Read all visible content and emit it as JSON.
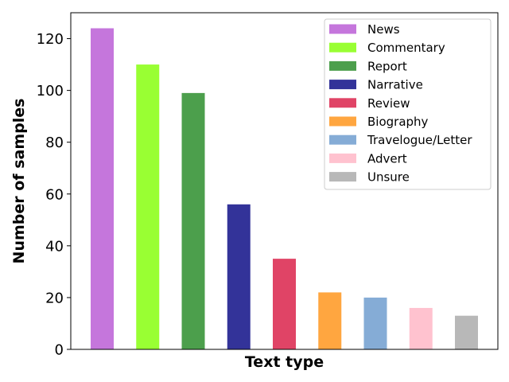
{
  "chart_data": {
    "type": "bar",
    "xlabel": "Text type",
    "ylabel": "Number of samples",
    "ylim": [
      0,
      130
    ],
    "yticks": [
      0,
      20,
      40,
      60,
      80,
      100,
      120
    ],
    "legend_position": "top-right",
    "series": [
      {
        "name": "News",
        "value": 124,
        "color": "#c576dc"
      },
      {
        "name": "Commentary",
        "value": 110,
        "color": "#99ff33"
      },
      {
        "name": "Report",
        "value": 99,
        "color": "#4c9f4c"
      },
      {
        "name": "Narrative",
        "value": 56,
        "color": "#333399"
      },
      {
        "name": "Review",
        "value": 35,
        "color": "#e04466"
      },
      {
        "name": "Biography",
        "value": 22,
        "color": "#ffa640"
      },
      {
        "name": "Travelogue/Letter",
        "value": 20,
        "color": "#85acd6"
      },
      {
        "name": "Advert",
        "value": 16,
        "color": "#ffc2cf"
      },
      {
        "name": "Unsure",
        "value": 13,
        "color": "#b8b8b8"
      }
    ]
  }
}
